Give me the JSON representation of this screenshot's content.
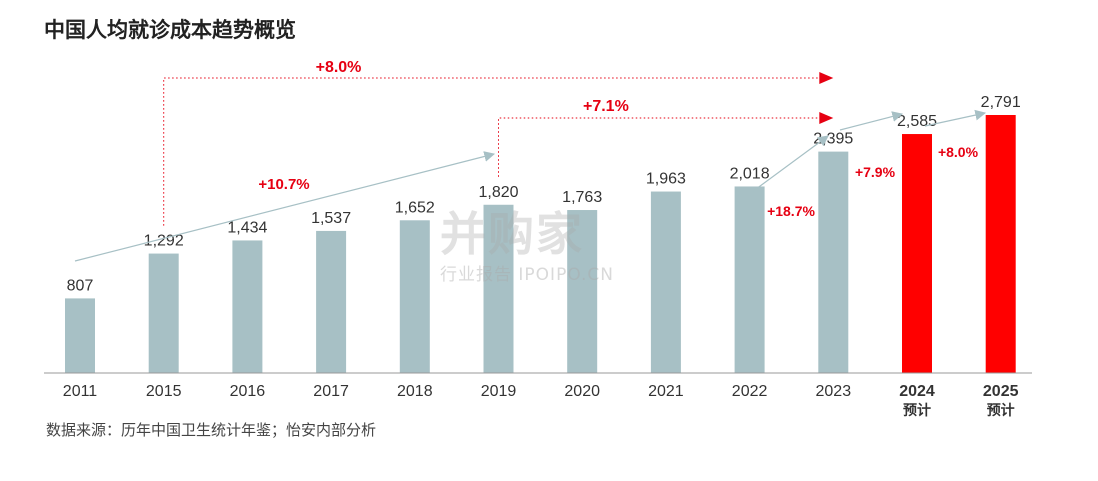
{
  "title": "中国人均就诊成本趋势概览",
  "source": "数据来源：历年中国卫生统计年鉴；怡安内部分析",
  "watermark": {
    "main": "并购家",
    "sub": "行业报告 IPOIPO.CN"
  },
  "colors": {
    "actual": "#a7c0c5",
    "forecast": "#ff0000",
    "growth": "#e60012",
    "axis": "#999999",
    "arrow": "#a7c0c5"
  },
  "chart_data": {
    "type": "bar",
    "categories": [
      "2011",
      "2015",
      "2016",
      "2017",
      "2018",
      "2019",
      "2020",
      "2021",
      "2022",
      "2023",
      "2024",
      "2025"
    ],
    "category_sublabels": [
      "",
      "",
      "",
      "",
      "",
      "",
      "",
      "",
      "",
      "",
      "预计",
      "预计"
    ],
    "values": [
      807,
      1292,
      1434,
      1537,
      1652,
      1820,
      1763,
      1963,
      2018,
      2395,
      2585,
      2791
    ],
    "value_labels": [
      "807",
      "1,292",
      "1,434",
      "1,537",
      "1,652",
      "1,820",
      "1,763",
      "1,963",
      "2,018",
      "2,395",
      "2,585",
      "2,791"
    ],
    "forecast": [
      false,
      false,
      false,
      false,
      false,
      false,
      false,
      false,
      false,
      false,
      true,
      true
    ],
    "ylim": [
      0,
      2800
    ],
    "annotations": [
      {
        "label": "+8.0%",
        "from": "2015",
        "to": "2023",
        "style": "dotted-bracket"
      },
      {
        "label": "+7.1%",
        "from": "2019",
        "to": "2023",
        "style": "dotted-bracket"
      },
      {
        "label": "+10.7%",
        "from": "2011",
        "to": "2019",
        "style": "trend-arrow"
      },
      {
        "label": "+18.7%",
        "from": "2022",
        "to": "2023",
        "style": "trend-arrow"
      },
      {
        "label": "+7.9%",
        "from": "2023",
        "to": "2024",
        "style": "trend-arrow"
      },
      {
        "label": "+8.0%",
        "from": "2024",
        "to": "2025",
        "style": "trend-arrow"
      }
    ]
  }
}
